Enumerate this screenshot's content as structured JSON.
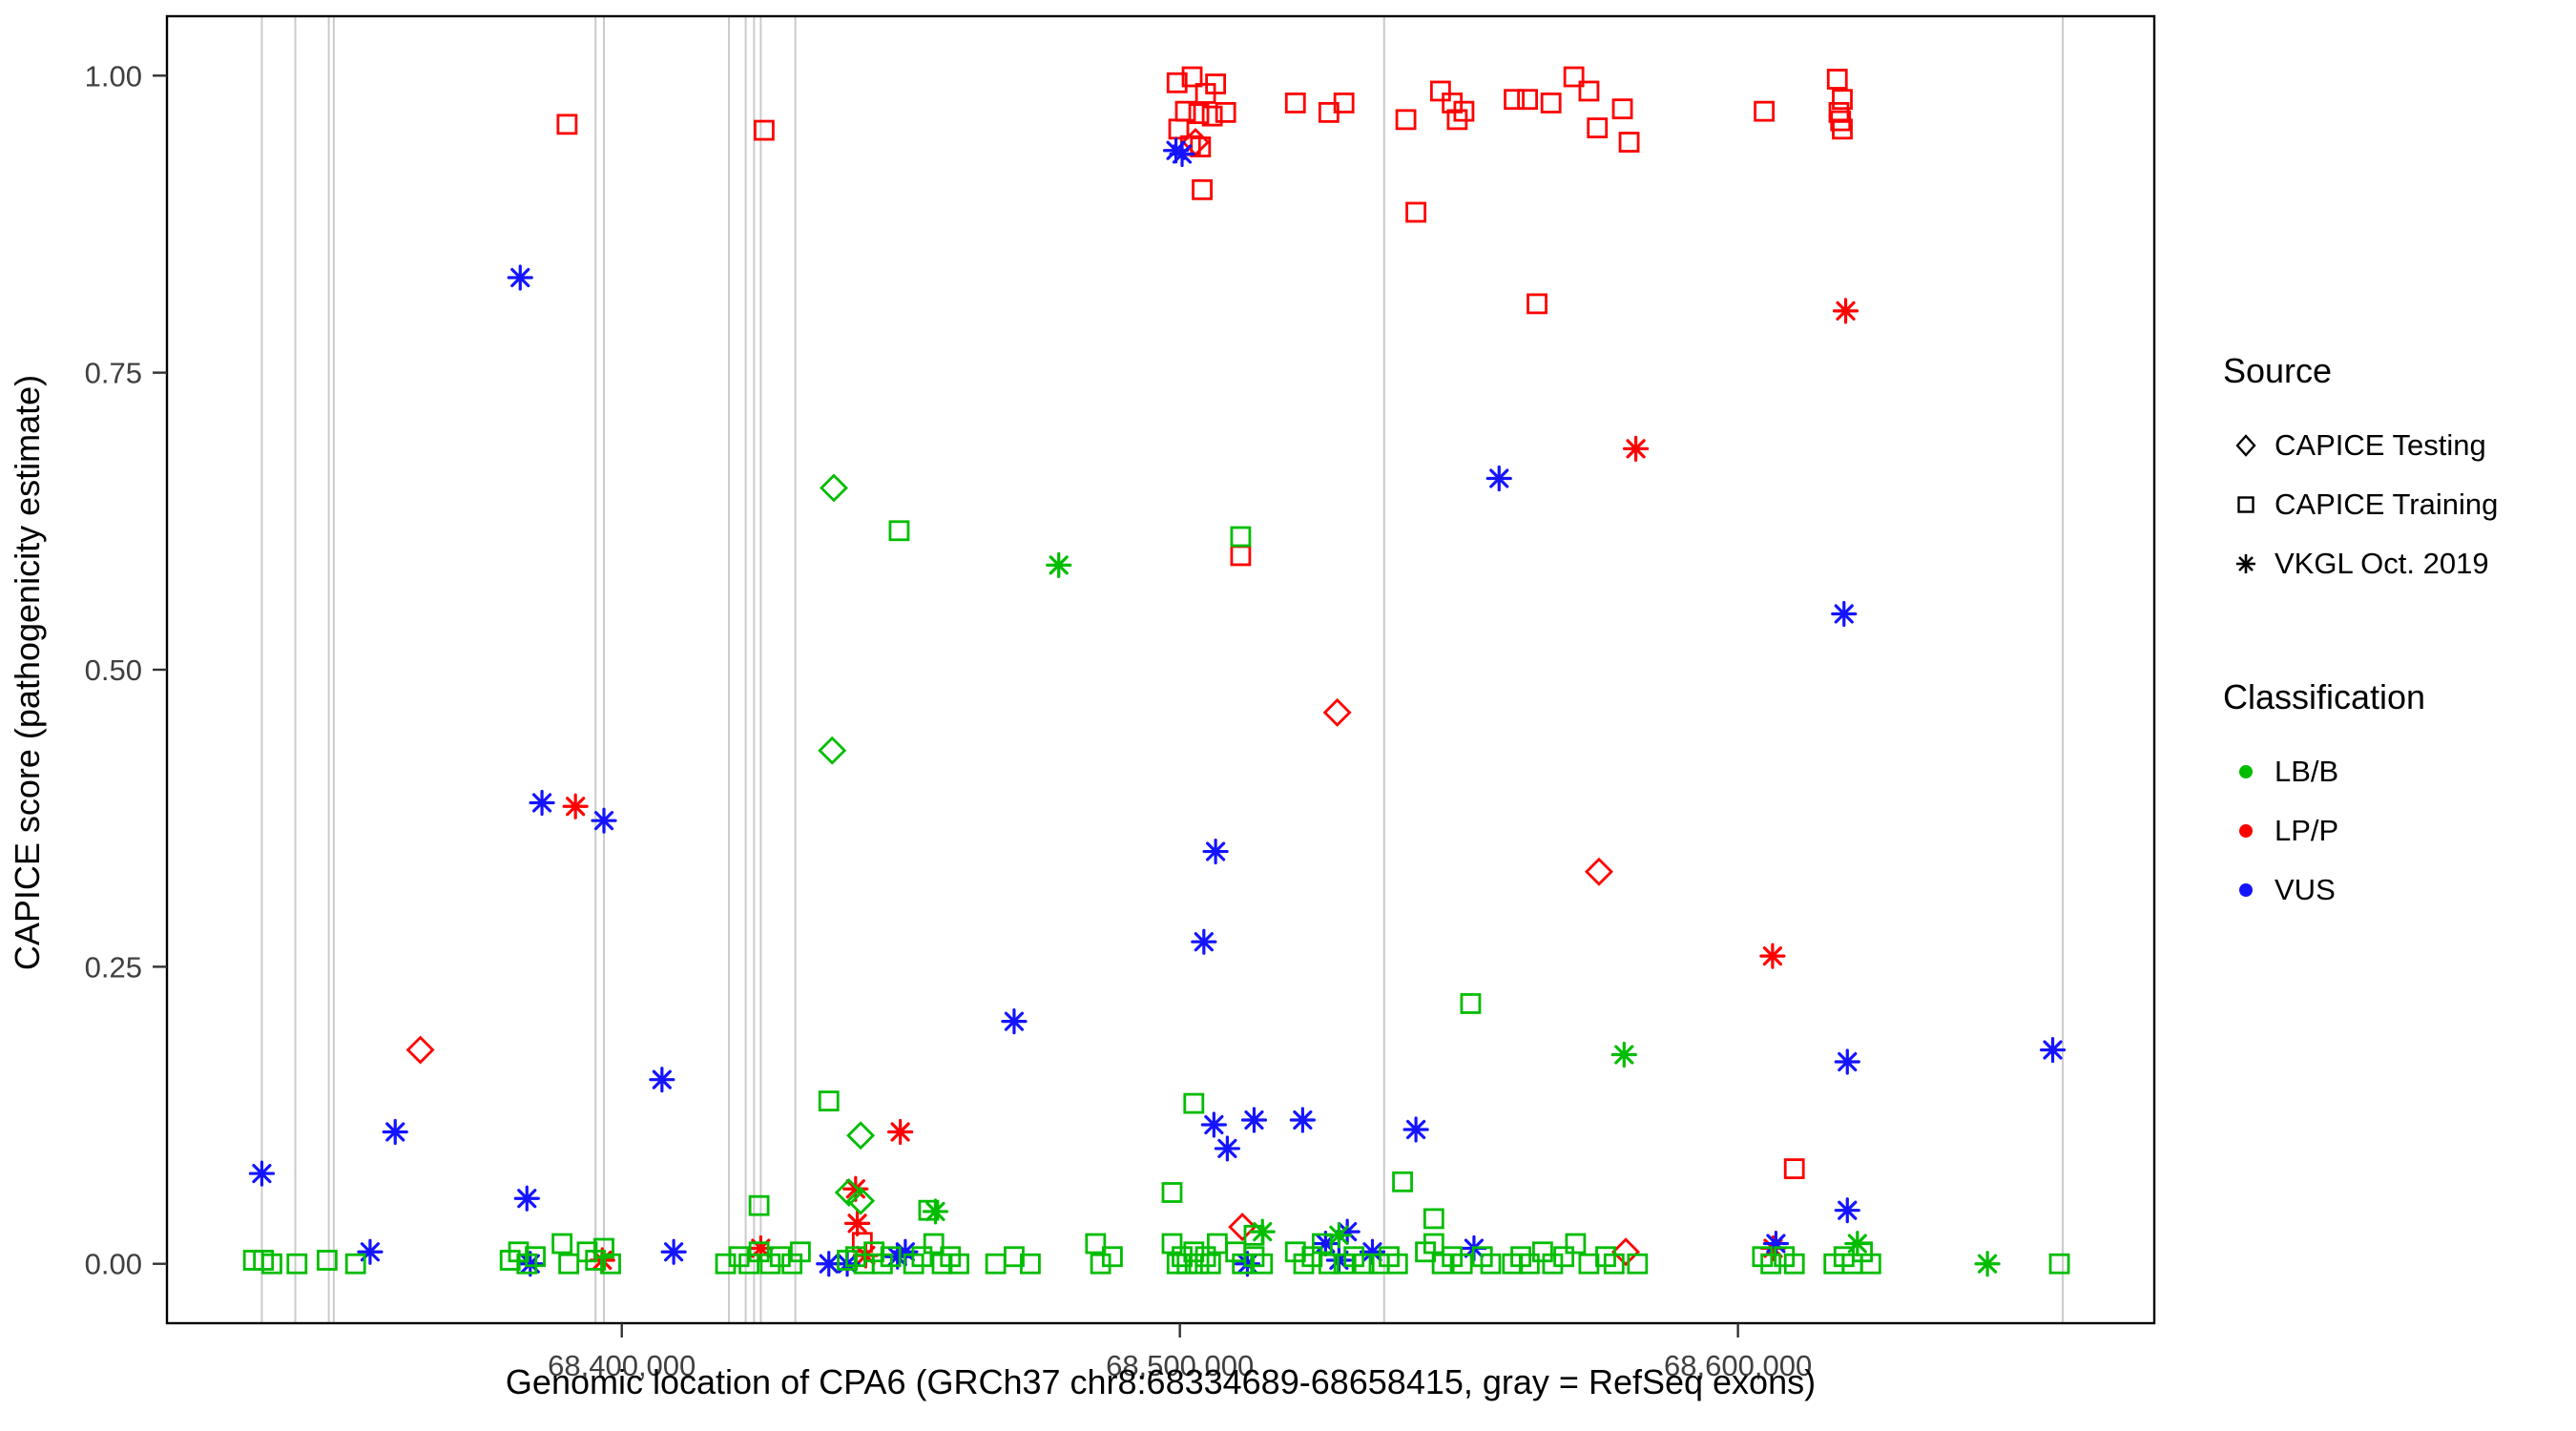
{
  "figure": {
    "x_axis_title": "Genomic location of CPA6 (GRCh37 chr8:68334689-68658415, gray = RefSeq exons)",
    "y_axis_title": "CAPICE score (pathogenicity estimate)"
  },
  "legend": {
    "source": {
      "title": "Source",
      "items": [
        {
          "label": "CAPICE Testing",
          "shape": "diamond"
        },
        {
          "label": "CAPICE Training",
          "shape": "square"
        },
        {
          "label": "VKGL Oct. 2019",
          "shape": "asterisk"
        }
      ]
    },
    "classification": {
      "title": "Classification",
      "items": [
        {
          "label": "LB/B",
          "color": "#00BD00"
        },
        {
          "label": "LP/P",
          "color": "#FF0000"
        },
        {
          "label": "VUS",
          "color": "#1414FF"
        }
      ]
    }
  },
  "chart_data": {
    "type": "scatter",
    "title": "",
    "xlabel": "Genomic location of CPA6 (GRCh37 chr8:68334689-68658415, gray = RefSeq exons)",
    "ylabel": "CAPICE score (pathogenicity estimate)",
    "xlim": [
      68318503,
      68674601
    ],
    "ylim": [
      -0.05,
      1.05
    ],
    "grid": false,
    "legend_position": "right",
    "x_ticks": [
      {
        "value": 68400000,
        "label": "68,400,000"
      },
      {
        "value": 68500000,
        "label": "68,500,000"
      },
      {
        "value": 68600000,
        "label": "68,600,000"
      }
    ],
    "y_ticks": [
      {
        "value": 0.0,
        "label": "0.00"
      },
      {
        "value": 0.25,
        "label": "0.25"
      },
      {
        "value": 0.5,
        "label": "0.50"
      },
      {
        "value": 0.75,
        "label": "0.75"
      },
      {
        "value": 1.0,
        "label": "1.00"
      }
    ],
    "exon_color": "#CBCBCB",
    "exon_positions": [
      68335500,
      68341500,
      68347500,
      68348400,
      68395300,
      68396800,
      68419200,
      68422200,
      68423700,
      68424900,
      68431100,
      68536600,
      68658200
    ],
    "shape_map": {
      "diamond": "CAPICE Testing",
      "square": "CAPICE Training",
      "asterisk": "VKGL Oct. 2019"
    },
    "class_colors": {
      "LB/B": "#00BD00",
      "LP/P": "#FF0000",
      "VUS": "#1414FF"
    },
    "points": [
      [
        68390200,
        0.959,
        "square",
        "LP/P"
      ],
      [
        68425500,
        0.954,
        "square",
        "LP/P"
      ],
      [
        68499500,
        0.994,
        "square",
        "LP/P"
      ],
      [
        68502200,
        0.999,
        "square",
        "LP/P"
      ],
      [
        68504600,
        0.985,
        "square",
        "LP/P"
      ],
      [
        68506400,
        0.993,
        "square",
        "LP/P"
      ],
      [
        68501000,
        0.97,
        "square",
        "LP/P"
      ],
      [
        68503400,
        0.968,
        "square",
        "LP/P"
      ],
      [
        68505800,
        0.966,
        "square",
        "LP/P"
      ],
      [
        68508200,
        0.969,
        "square",
        "LP/P"
      ],
      [
        68499800,
        0.955,
        "square",
        "LP/P"
      ],
      [
        68501900,
        0.941,
        "square",
        "LP/P"
      ],
      [
        68503700,
        0.94,
        "square",
        "LP/P"
      ],
      [
        68504000,
        0.904,
        "square",
        "LP/P"
      ],
      [
        68510900,
        0.596,
        "square",
        "LP/P"
      ],
      [
        68520700,
        0.977,
        "square",
        "LP/P"
      ],
      [
        68526700,
        0.969,
        "square",
        "LP/P"
      ],
      [
        68529400,
        0.977,
        "square",
        "LP/P"
      ],
      [
        68540500,
        0.963,
        "square",
        "LP/P"
      ],
      [
        68542300,
        0.885,
        "square",
        "LP/P"
      ],
      [
        68546700,
        0.987,
        "square",
        "LP/P"
      ],
      [
        68548800,
        0.977,
        "square",
        "LP/P"
      ],
      [
        68549700,
        0.963,
        "square",
        "LP/P"
      ],
      [
        68550900,
        0.97,
        "square",
        "LP/P"
      ],
      [
        68559900,
        0.98,
        "square",
        "LP/P"
      ],
      [
        68562300,
        0.98,
        "square",
        "LP/P"
      ],
      [
        68566500,
        0.977,
        "square",
        "LP/P"
      ],
      [
        68570600,
        0.999,
        "square",
        "LP/P"
      ],
      [
        68573300,
        0.987,
        "square",
        "LP/P"
      ],
      [
        68574800,
        0.956,
        "square",
        "LP/P"
      ],
      [
        68579300,
        0.972,
        "square",
        "LP/P"
      ],
      [
        68580500,
        0.944,
        "square",
        "LP/P"
      ],
      [
        68564000,
        0.808,
        "square",
        "LP/P"
      ],
      [
        68604700,
        0.97,
        "square",
        "LP/P"
      ],
      [
        68617800,
        0.997,
        "square",
        "LP/P"
      ],
      [
        68618700,
        0.98,
        "square",
        "LP/P"
      ],
      [
        68618100,
        0.969,
        "square",
        "LP/P"
      ],
      [
        68618400,
        0.962,
        "square",
        "LP/P"
      ],
      [
        68618700,
        0.955,
        "square",
        "LP/P"
      ],
      [
        68610100,
        0.08,
        "square",
        "LP/P"
      ],
      [
        68443100,
        0.018,
        "square",
        "LP/P"
      ],
      [
        68363900,
        0.18,
        "diamond",
        "LP/P"
      ],
      [
        68502800,
        0.944,
        "diamond",
        "LP/P"
      ],
      [
        68528200,
        0.464,
        "diamond",
        "LP/P"
      ],
      [
        68575100,
        0.33,
        "diamond",
        "LP/P"
      ],
      [
        68511200,
        0.031,
        "diamond",
        "LP/P"
      ],
      [
        68579900,
        0.01,
        "diamond",
        "LP/P"
      ],
      [
        68391700,
        0.385,
        "asterisk",
        "LP/P"
      ],
      [
        68449900,
        0.111,
        "asterisk",
        "LP/P"
      ],
      [
        68441900,
        0.063,
        "asterisk",
        "LP/P"
      ],
      [
        68442200,
        0.034,
        "asterisk",
        "LP/P"
      ],
      [
        68443700,
        0.007,
        "asterisk",
        "LP/P"
      ],
      [
        68424900,
        0.013,
        "asterisk",
        "LP/P"
      ],
      [
        68396500,
        0.003,
        "asterisk",
        "LP/P"
      ],
      [
        68581700,
        0.686,
        "asterisk",
        "LP/P"
      ],
      [
        68619300,
        0.802,
        "asterisk",
        "LP/P"
      ],
      [
        68606200,
        0.259,
        "asterisk",
        "LP/P"
      ],
      [
        68606300,
        0.013,
        "asterisk",
        "LP/P"
      ],
      [
        68335500,
        0.076,
        "asterisk",
        "VUS"
      ],
      [
        68354900,
        0.01,
        "asterisk",
        "VUS"
      ],
      [
        68359400,
        0.111,
        "asterisk",
        "VUS"
      ],
      [
        68381800,
        0.83,
        "asterisk",
        "VUS"
      ],
      [
        68385700,
        0.388,
        "asterisk",
        "VUS"
      ],
      [
        68396800,
        0.373,
        "asterisk",
        "VUS"
      ],
      [
        68383000,
        0.055,
        "asterisk",
        "VUS"
      ],
      [
        68383600,
        0.0,
        "asterisk",
        "VUS"
      ],
      [
        68407200,
        0.155,
        "asterisk",
        "VUS"
      ],
      [
        68409300,
        0.01,
        "asterisk",
        "VUS"
      ],
      [
        68437100,
        0.0,
        "asterisk",
        "VUS"
      ],
      [
        68449400,
        0.006,
        "asterisk",
        "VUS"
      ],
      [
        68450800,
        0.01,
        "asterisk",
        "VUS"
      ],
      [
        68470300,
        0.204,
        "asterisk",
        "VUS"
      ],
      [
        68499300,
        0.937,
        "asterisk",
        "VUS"
      ],
      [
        68500400,
        0.934,
        "asterisk",
        "VUS"
      ],
      [
        68506400,
        0.347,
        "asterisk",
        "VUS"
      ],
      [
        68504300,
        0.271,
        "asterisk",
        "VUS"
      ],
      [
        68506100,
        0.117,
        "asterisk",
        "VUS"
      ],
      [
        68508500,
        0.097,
        "asterisk",
        "VUS"
      ],
      [
        68513300,
        0.121,
        "asterisk",
        "VUS"
      ],
      [
        68522000,
        0.121,
        "asterisk",
        "VUS"
      ],
      [
        68526100,
        0.017,
        "asterisk",
        "VUS"
      ],
      [
        68530000,
        0.027,
        "asterisk",
        "VUS"
      ],
      [
        68534500,
        0.01,
        "asterisk",
        "VUS"
      ],
      [
        68542300,
        0.113,
        "asterisk",
        "VUS"
      ],
      [
        68552700,
        0.013,
        "asterisk",
        "VUS"
      ],
      [
        68557200,
        0.661,
        "asterisk",
        "VUS"
      ],
      [
        68619600,
        0.17,
        "asterisk",
        "VUS"
      ],
      [
        68619600,
        0.045,
        "asterisk",
        "VUS"
      ],
      [
        68606800,
        0.017,
        "asterisk",
        "VUS"
      ],
      [
        68656400,
        0.18,
        "asterisk",
        "VUS"
      ],
      [
        68619000,
        0.547,
        "asterisk",
        "VUS"
      ],
      [
        68512100,
        0.0,
        "asterisk",
        "VUS"
      ],
      [
        68440400,
        0.0,
        "asterisk",
        "VUS"
      ],
      [
        68528500,
        0.003,
        "asterisk",
        "VUS"
      ],
      [
        68438000,
        0.653,
        "diamond",
        "LB/B"
      ],
      [
        68437700,
        0.432,
        "diamond",
        "LB/B"
      ],
      [
        68442800,
        0.108,
        "diamond",
        "LB/B"
      ],
      [
        68440700,
        0.06,
        "diamond",
        "LB/B"
      ],
      [
        68442800,
        0.053,
        "diamond",
        "LB/B"
      ],
      [
        68478300,
        0.588,
        "asterisk",
        "LB/B"
      ],
      [
        68456200,
        0.044,
        "asterisk",
        "LB/B"
      ],
      [
        68514800,
        0.027,
        "asterisk",
        "LB/B"
      ],
      [
        68528500,
        0.024,
        "asterisk",
        "LB/B"
      ],
      [
        68579600,
        0.176,
        "asterisk",
        "LB/B"
      ],
      [
        68621400,
        0.017,
        "asterisk",
        "LB/B"
      ],
      [
        68644700,
        0.0,
        "asterisk",
        "LB/B"
      ],
      [
        68334000,
        0.003,
        "square",
        "LB/B"
      ],
      [
        68335800,
        0.003,
        "square",
        "LB/B"
      ],
      [
        68337300,
        0.0,
        "square",
        "LB/B"
      ],
      [
        68341800,
        0.0,
        "square",
        "LB/B"
      ],
      [
        68347200,
        0.003,
        "square",
        "LB/B"
      ],
      [
        68352300,
        0.0,
        "square",
        "LB/B"
      ],
      [
        68380000,
        0.003,
        "square",
        "LB/B"
      ],
      [
        68381500,
        0.01,
        "square",
        "LB/B"
      ],
      [
        68383000,
        0.0,
        "square",
        "LB/B"
      ],
      [
        68384500,
        0.006,
        "square",
        "LB/B"
      ],
      [
        68389300,
        0.017,
        "square",
        "LB/B"
      ],
      [
        68390500,
        0.0,
        "square",
        "LB/B"
      ],
      [
        68393800,
        0.01,
        "square",
        "LB/B"
      ],
      [
        68395300,
        0.003,
        "square",
        "LB/B"
      ],
      [
        68396800,
        0.013,
        "square",
        "LB/B"
      ],
      [
        68398000,
        0.0,
        "square",
        "LB/B"
      ],
      [
        68418600,
        0.0,
        "square",
        "LB/B"
      ],
      [
        68421000,
        0.006,
        "square",
        "LB/B"
      ],
      [
        68422800,
        0.0,
        "square",
        "LB/B"
      ],
      [
        68424600,
        0.01,
        "square",
        "LB/B"
      ],
      [
        68424600,
        0.049,
        "square",
        "LB/B"
      ],
      [
        68426600,
        0.0,
        "square",
        "LB/B"
      ],
      [
        68428400,
        0.006,
        "square",
        "LB/B"
      ],
      [
        68430500,
        0.0,
        "square",
        "LB/B"
      ],
      [
        68432000,
        0.01,
        "square",
        "LB/B"
      ],
      [
        68437100,
        0.137,
        "square",
        "LB/B"
      ],
      [
        68440400,
        0.003,
        "square",
        "LB/B"
      ],
      [
        68441900,
        0.006,
        "square",
        "LB/B"
      ],
      [
        68443400,
        0.0,
        "square",
        "LB/B"
      ],
      [
        68445200,
        0.01,
        "square",
        "LB/B"
      ],
      [
        68446700,
        0.0,
        "square",
        "LB/B"
      ],
      [
        68448200,
        0.006,
        "square",
        "LB/B"
      ],
      [
        68449700,
        0.617,
        "square",
        "LB/B"
      ],
      [
        68452300,
        0.0,
        "square",
        "LB/B"
      ],
      [
        68453800,
        0.006,
        "square",
        "LB/B"
      ],
      [
        68455000,
        0.045,
        "square",
        "LB/B"
      ],
      [
        68455900,
        0.017,
        "square",
        "LB/B"
      ],
      [
        68457400,
        0.0,
        "square",
        "LB/B"
      ],
      [
        68458900,
        0.006,
        "square",
        "LB/B"
      ],
      [
        68460400,
        0.0,
        "square",
        "LB/B"
      ],
      [
        68467000,
        0.0,
        "square",
        "LB/B"
      ],
      [
        68470300,
        0.006,
        "square",
        "LB/B"
      ],
      [
        68473200,
        0.0,
        "square",
        "LB/B"
      ],
      [
        68484900,
        0.017,
        "square",
        "LB/B"
      ],
      [
        68485800,
        0.0,
        "square",
        "LB/B"
      ],
      [
        68487900,
        0.006,
        "square",
        "LB/B"
      ],
      [
        68498600,
        0.06,
        "square",
        "LB/B"
      ],
      [
        68498600,
        0.017,
        "square",
        "LB/B"
      ],
      [
        68499500,
        0.0,
        "square",
        "LB/B"
      ],
      [
        68500400,
        0.006,
        "square",
        "LB/B"
      ],
      [
        68501300,
        0.0,
        "square",
        "LB/B"
      ],
      [
        68502500,
        0.01,
        "square",
        "LB/B"
      ],
      [
        68503400,
        0.0,
        "square",
        "LB/B"
      ],
      [
        68504600,
        0.006,
        "square",
        "LB/B"
      ],
      [
        68505500,
        0.0,
        "square",
        "LB/B"
      ],
      [
        68506700,
        0.017,
        "square",
        "LB/B"
      ],
      [
        68502500,
        0.135,
        "square",
        "LB/B"
      ],
      [
        68510000,
        0.01,
        "square",
        "LB/B"
      ],
      [
        68511200,
        0.0,
        "square",
        "LB/B"
      ],
      [
        68513300,
        0.006,
        "square",
        "LB/B"
      ],
      [
        68514800,
        0.0,
        "square",
        "LB/B"
      ],
      [
        68513300,
        0.024,
        "square",
        "LB/B"
      ],
      [
        68510900,
        0.612,
        "square",
        "LB/B"
      ],
      [
        68520700,
        0.01,
        "square",
        "LB/B"
      ],
      [
        68522200,
        0.0,
        "square",
        "LB/B"
      ],
      [
        68523700,
        0.006,
        "square",
        "LB/B"
      ],
      [
        68525500,
        0.017,
        "square",
        "LB/B"
      ],
      [
        68526700,
        0.0,
        "square",
        "LB/B"
      ],
      [
        68529400,
        0.0,
        "square",
        "LB/B"
      ],
      [
        68531200,
        0.006,
        "square",
        "LB/B"
      ],
      [
        68533000,
        0.0,
        "square",
        "LB/B"
      ],
      [
        68535700,
        0.0,
        "square",
        "LB/B"
      ],
      [
        68537500,
        0.006,
        "square",
        "LB/B"
      ],
      [
        68539000,
        0.0,
        "square",
        "LB/B"
      ],
      [
        68539900,
        0.069,
        "square",
        "LB/B"
      ],
      [
        68544000,
        0.01,
        "square",
        "LB/B"
      ],
      [
        68545500,
        0.017,
        "square",
        "LB/B"
      ],
      [
        68545500,
        0.038,
        "square",
        "LB/B"
      ],
      [
        68547000,
        0.0,
        "square",
        "LB/B"
      ],
      [
        68548800,
        0.006,
        "square",
        "LB/B"
      ],
      [
        68550600,
        0.0,
        "square",
        "LB/B"
      ],
      [
        68552100,
        0.219,
        "square",
        "LB/B"
      ],
      [
        68554200,
        0.006,
        "square",
        "LB/B"
      ],
      [
        68555700,
        0.0,
        "square",
        "LB/B"
      ],
      [
        68559600,
        0.0,
        "square",
        "LB/B"
      ],
      [
        68561100,
        0.006,
        "square",
        "LB/B"
      ],
      [
        68562600,
        0.0,
        "square",
        "LB/B"
      ],
      [
        68565000,
        0.01,
        "square",
        "LB/B"
      ],
      [
        68566800,
        0.0,
        "square",
        "LB/B"
      ],
      [
        68568800,
        0.006,
        "square",
        "LB/B"
      ],
      [
        68570900,
        0.017,
        "square",
        "LB/B"
      ],
      [
        68573300,
        0.0,
        "square",
        "LB/B"
      ],
      [
        68576300,
        0.006,
        "square",
        "LB/B"
      ],
      [
        68577800,
        0.0,
        "square",
        "LB/B"
      ],
      [
        68582000,
        0.0,
        "square",
        "LB/B"
      ],
      [
        68604400,
        0.006,
        "square",
        "LB/B"
      ],
      [
        68605900,
        0.0,
        "square",
        "LB/B"
      ],
      [
        68608300,
        0.006,
        "square",
        "LB/B"
      ],
      [
        68610100,
        0.0,
        "square",
        "LB/B"
      ],
      [
        68617200,
        0.0,
        "square",
        "LB/B"
      ],
      [
        68619000,
        0.006,
        "square",
        "LB/B"
      ],
      [
        68620500,
        0.0,
        "square",
        "LB/B"
      ],
      [
        68622300,
        0.01,
        "square",
        "LB/B"
      ],
      [
        68623800,
        0.0,
        "square",
        "LB/B"
      ],
      [
        68657600,
        0.0,
        "square",
        "LB/B"
      ]
    ]
  }
}
